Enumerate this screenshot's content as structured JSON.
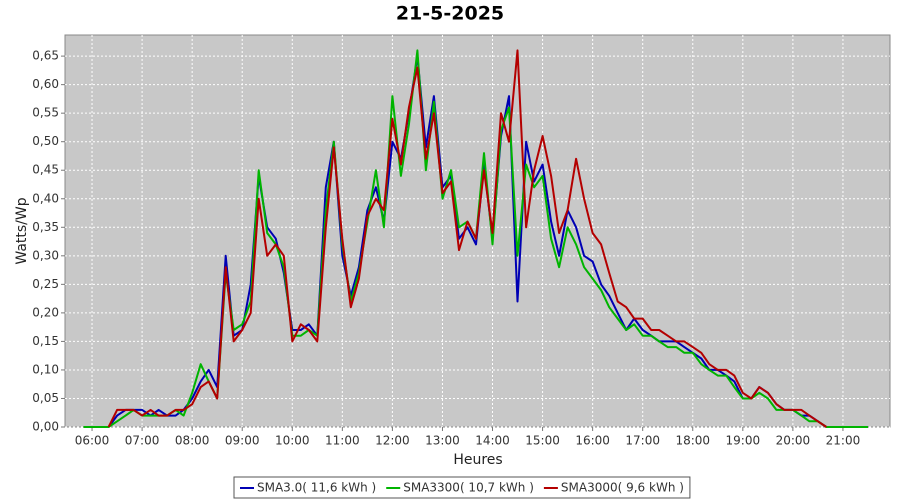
{
  "chart_data": {
    "type": "line",
    "title": "21-5-2025",
    "xlabel": "Heures",
    "ylabel": "Watts/Wp",
    "grid": true,
    "legend": "bottom",
    "background": "#c8c8c8",
    "xlim": [
      5.46,
      21.94
    ],
    "ylim": [
      0,
      0.687
    ],
    "xticks": [
      {
        "value": 6,
        "label": "06:00"
      },
      {
        "value": 7,
        "label": "07:00"
      },
      {
        "value": 8,
        "label": "08:00"
      },
      {
        "value": 9,
        "label": "09:00"
      },
      {
        "value": 10,
        "label": "10:00"
      },
      {
        "value": 11,
        "label": "11:00"
      },
      {
        "value": 12,
        "label": "12:00"
      },
      {
        "value": 13,
        "label": "13:00"
      },
      {
        "value": 14,
        "label": "14:00"
      },
      {
        "value": 15,
        "label": "15:00"
      },
      {
        "value": 16,
        "label": "16:00"
      },
      {
        "value": 17,
        "label": "17:00"
      },
      {
        "value": 18,
        "label": "18:00"
      },
      {
        "value": 19,
        "label": "19:00"
      },
      {
        "value": 20,
        "label": "20:00"
      },
      {
        "value": 21,
        "label": "21:00"
      }
    ],
    "yticks": [
      {
        "value": 0,
        "label": "0,00"
      },
      {
        "value": 0.05,
        "label": "0,05"
      },
      {
        "value": 0.1,
        "label": "0,10"
      },
      {
        "value": 0.15,
        "label": "0,15"
      },
      {
        "value": 0.2,
        "label": "0,20"
      },
      {
        "value": 0.25,
        "label": "0,25"
      },
      {
        "value": 0.3,
        "label": "0,30"
      },
      {
        "value": 0.35,
        "label": "0,35"
      },
      {
        "value": 0.4,
        "label": "0,40"
      },
      {
        "value": 0.45,
        "label": "0,45"
      },
      {
        "value": 0.5,
        "label": "0,50"
      },
      {
        "value": 0.55,
        "label": "0,55"
      },
      {
        "value": 0.6,
        "label": "0,60"
      },
      {
        "value": 0.65,
        "label": "0,65"
      }
    ],
    "x": [
      5.83,
      6,
      6.17,
      6.33,
      6.5,
      6.67,
      6.83,
      7,
      7.17,
      7.33,
      7.5,
      7.67,
      7.83,
      8,
      8.17,
      8.33,
      8.5,
      8.67,
      8.83,
      9,
      9.17,
      9.33,
      9.5,
      9.67,
      9.83,
      10,
      10.17,
      10.33,
      10.5,
      10.67,
      10.83,
      11,
      11.17,
      11.33,
      11.5,
      11.67,
      11.83,
      12,
      12.17,
      12.33,
      12.5,
      12.67,
      12.83,
      13,
      13.17,
      13.33,
      13.5,
      13.67,
      13.83,
      14,
      14.17,
      14.33,
      14.5,
      14.67,
      14.83,
      15,
      15.17,
      15.33,
      15.5,
      15.67,
      15.83,
      16,
      16.17,
      16.33,
      16.5,
      16.67,
      16.83,
      17,
      17.17,
      17.33,
      17.5,
      17.67,
      17.83,
      18,
      18.17,
      18.33,
      18.5,
      18.67,
      18.83,
      19,
      19.17,
      19.33,
      19.5,
      19.67,
      19.83,
      20,
      20.17,
      20.33,
      20.5,
      20.67,
      20.83,
      21,
      21.17,
      21.33,
      21.5
    ],
    "series": [
      {
        "name": "SMA3.0( 11,6 kWh )",
        "color": "#0000b4",
        "values": [
          null,
          null,
          null,
          0,
          0.02,
          0.03,
          0.03,
          0.03,
          0.02,
          0.03,
          0.02,
          0.02,
          0.03,
          0.05,
          0.08,
          0.1,
          0.07,
          0.3,
          0.16,
          0.17,
          0.25,
          0.44,
          0.35,
          0.33,
          0.27,
          0.17,
          0.17,
          0.18,
          0.16,
          0.42,
          0.5,
          0.3,
          0.23,
          0.28,
          0.38,
          0.42,
          0.36,
          0.5,
          0.47,
          0.55,
          0.65,
          0.49,
          0.58,
          0.42,
          0.44,
          0.33,
          0.35,
          0.32,
          0.46,
          0.33,
          0.51,
          0.58,
          0.22,
          0.5,
          0.43,
          0.46,
          0.36,
          0.3,
          0.38,
          0.35,
          0.3,
          0.29,
          0.25,
          0.23,
          0.2,
          0.17,
          0.19,
          0.17,
          0.16,
          0.15,
          0.15,
          0.15,
          0.14,
          0.13,
          0.12,
          0.1,
          0.1,
          0.09,
          0.08,
          0.05,
          0.05,
          0.07,
          0.06,
          0.04,
          0.03,
          0.03,
          0.02,
          0.02,
          0.01,
          0,
          null,
          null,
          null,
          null,
          null
        ]
      },
      {
        "name": "SMA3300( 10,7 kWh )",
        "color": "#00b400",
        "values": [
          0,
          0,
          0,
          0,
          0.01,
          0.02,
          0.03,
          0.02,
          0.02,
          0.02,
          0.02,
          0.03,
          0.02,
          0.06,
          0.11,
          0.08,
          0.05,
          0.27,
          0.17,
          0.18,
          0.22,
          0.45,
          0.34,
          0.32,
          0.28,
          0.16,
          0.16,
          0.17,
          0.16,
          0.38,
          0.5,
          0.32,
          0.22,
          0.27,
          0.36,
          0.45,
          0.35,
          0.58,
          0.44,
          0.53,
          0.66,
          0.45,
          0.57,
          0.4,
          0.45,
          0.35,
          0.36,
          0.33,
          0.48,
          0.32,
          0.52,
          0.56,
          0.3,
          0.46,
          0.42,
          0.44,
          0.33,
          0.28,
          0.35,
          0.32,
          0.28,
          0.26,
          0.24,
          0.21,
          0.19,
          0.17,
          0.18,
          0.16,
          0.16,
          0.15,
          0.14,
          0.14,
          0.13,
          0.13,
          0.11,
          0.1,
          0.09,
          0.09,
          0.07,
          0.05,
          0.05,
          0.06,
          0.05,
          0.03,
          0.03,
          0.03,
          0.02,
          0.01,
          0.01,
          0,
          0,
          0,
          0,
          0,
          0
        ]
      },
      {
        "name": "SMA3000( 9,6 kWh )",
        "color": "#b40000",
        "values": [
          null,
          null,
          null,
          0,
          0.03,
          0.03,
          0.03,
          0.02,
          0.03,
          0.02,
          0.02,
          0.03,
          0.03,
          0.04,
          0.07,
          0.08,
          0.05,
          0.28,
          0.15,
          0.17,
          0.2,
          0.4,
          0.3,
          0.32,
          0.3,
          0.15,
          0.18,
          0.17,
          0.15,
          0.35,
          0.49,
          0.33,
          0.21,
          0.26,
          0.37,
          0.4,
          0.38,
          0.54,
          0.46,
          0.56,
          0.63,
          0.47,
          0.55,
          0.41,
          0.43,
          0.31,
          0.36,
          0.33,
          0.45,
          0.34,
          0.55,
          0.5,
          0.66,
          0.35,
          0.45,
          0.51,
          0.44,
          0.34,
          0.38,
          0.47,
          0.4,
          0.34,
          0.32,
          0.27,
          0.22,
          0.21,
          0.19,
          0.19,
          0.17,
          0.17,
          0.16,
          0.15,
          0.15,
          0.14,
          0.13,
          0.11,
          0.1,
          0.1,
          0.09,
          0.06,
          0.05,
          0.07,
          0.06,
          0.04,
          0.03,
          0.03,
          0.03,
          0.02,
          0.01,
          0,
          null,
          null,
          null,
          null,
          null
        ]
      }
    ]
  }
}
